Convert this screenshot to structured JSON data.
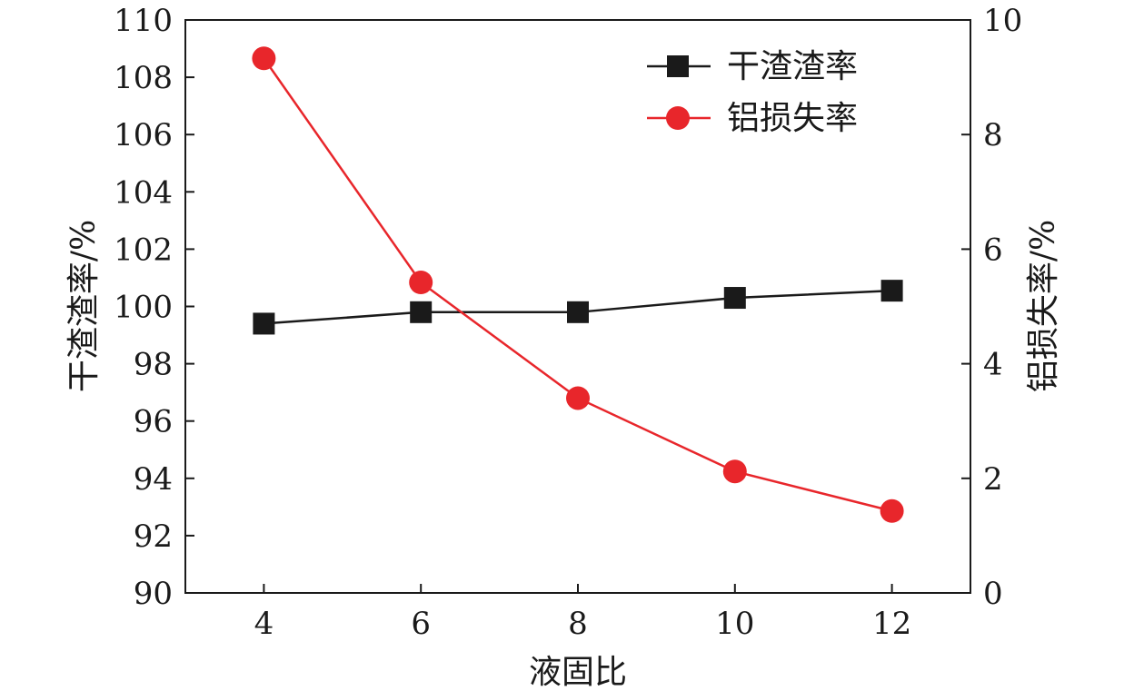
{
  "chart_data": {
    "type": "line",
    "x": [
      4,
      6,
      8,
      10,
      12
    ],
    "xticks": [
      "4",
      "6",
      "8",
      "10",
      "12"
    ],
    "xlabel": "液固比",
    "ylabel_left": "干渣渣率/%",
    "ylabel_right": "铝损失率/%",
    "ylim_left": [
      90,
      110
    ],
    "ylim_right": [
      0,
      10
    ],
    "yticks_left": [
      "90",
      "92",
      "94",
      "96",
      "98",
      "100",
      "102",
      "104",
      "106",
      "108",
      "110"
    ],
    "yticks_right": [
      "0",
      "2",
      "4",
      "6",
      "8",
      "10"
    ],
    "xlim": [
      3,
      13
    ],
    "grid": false,
    "legend_position": "top-right",
    "series": [
      {
        "name": "干渣渣率",
        "axis": "left",
        "marker": "square",
        "color": "#1a1a1a",
        "values": [
          99.4,
          99.8,
          99.8,
          100.3,
          100.55
        ]
      },
      {
        "name": "铝损失率",
        "axis": "right",
        "marker": "circle",
        "color": "#e8262b",
        "values": [
          9.33,
          5.42,
          3.4,
          2.12,
          1.43
        ]
      }
    ]
  }
}
